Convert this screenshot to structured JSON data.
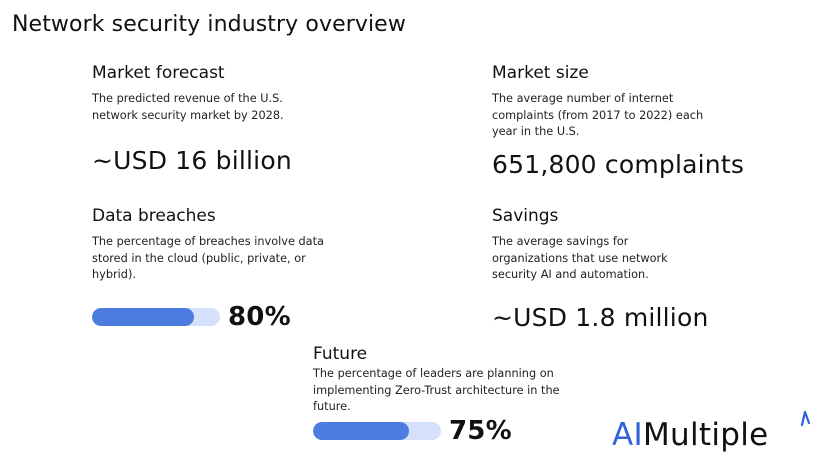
{
  "title": "Network security industry overview",
  "cards": {
    "market_forecast": {
      "heading": "Market forecast",
      "description": "The predicted revenue of the U.S. network security market by 2028.",
      "value": "~USD 16 billion"
    },
    "market_size": {
      "heading": "Market size",
      "description": "The average number of internet complaints (from 2017 to 2022) each year in the U.S.",
      "value": "651,800 complaints"
    },
    "data_breaches": {
      "heading": "Data breaches",
      "description": "The percentage of breaches involve data stored in the cloud (public, private, or hybrid).",
      "percent_label": "80%",
      "percent_value": 80
    },
    "savings": {
      "heading": "Savings",
      "description": "The average savings for organizations that use network security AI and automation.",
      "value": "~USD 1.8 million"
    },
    "future": {
      "heading": "Future",
      "description": "The percentage of leaders are planning on implementing Zero-Trust architecture in the future.",
      "percent_label": "75%",
      "percent_value": 75
    }
  },
  "logo": {
    "part1": "AI",
    "part2": "Multiple"
  },
  "colors": {
    "accent": "#4c7ce0",
    "track": "#d5e1fb",
    "brand": "#2e63dc"
  }
}
